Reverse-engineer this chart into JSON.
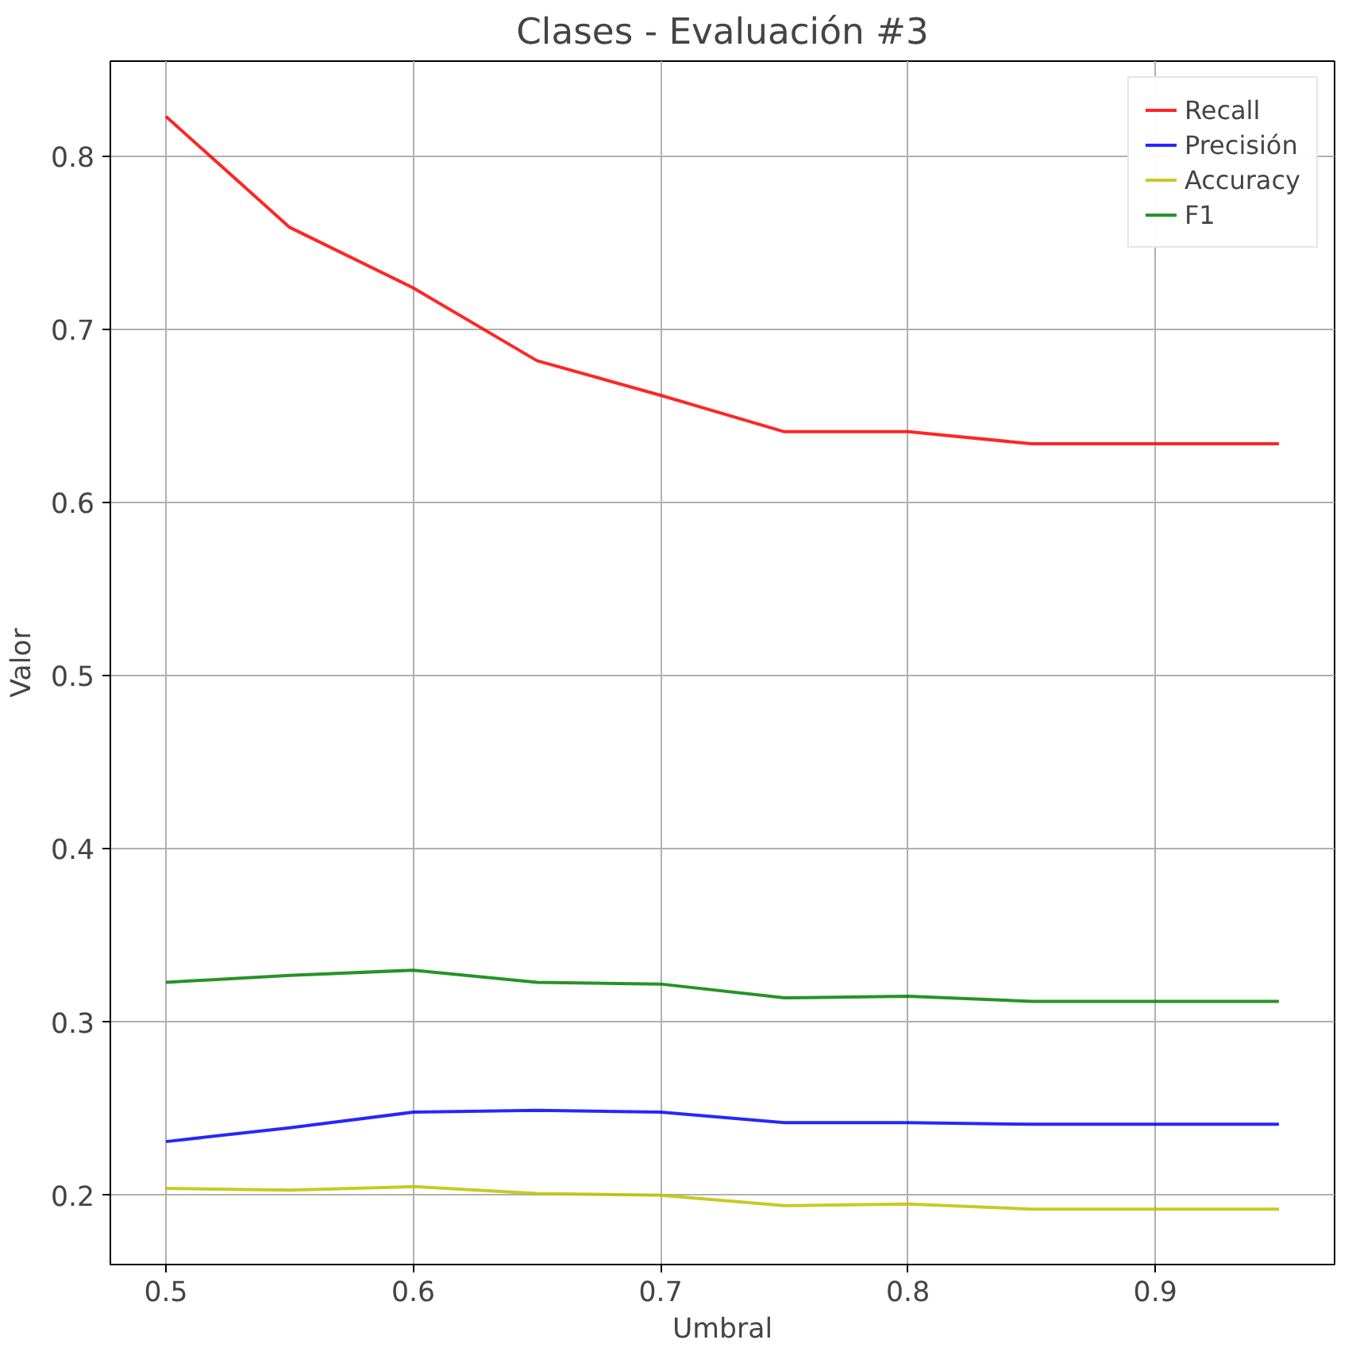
{
  "chart_data": {
    "type": "line",
    "title": "Clases - Evaluación #3",
    "xlabel": "Umbral",
    "ylabel": "Valor",
    "x": [
      0.5,
      0.55,
      0.6,
      0.65,
      0.7,
      0.75,
      0.8,
      0.85,
      0.9,
      0.95
    ],
    "series": [
      {
        "name": "Recall",
        "color": "#ff0000",
        "values": [
          0.823,
          0.759,
          0.724,
          0.682,
          0.662,
          0.641,
          0.641,
          0.634,
          0.634,
          0.634
        ]
      },
      {
        "name": "Precisión",
        "color": "#0000ff",
        "values": [
          0.231,
          0.239,
          0.248,
          0.249,
          0.248,
          0.242,
          0.242,
          0.241,
          0.241,
          0.241
        ]
      },
      {
        "name": "Accuracy",
        "color": "#bfbf00",
        "values": [
          0.204,
          0.203,
          0.205,
          0.201,
          0.2,
          0.194,
          0.195,
          0.192,
          0.192,
          0.192
        ]
      },
      {
        "name": "F1",
        "color": "#008000",
        "values": [
          0.323,
          0.327,
          0.33,
          0.323,
          0.322,
          0.314,
          0.315,
          0.312,
          0.312,
          0.312
        ]
      }
    ],
    "xlim": [
      0.4775,
      0.9725
    ],
    "ylim": [
      0.16,
      0.855
    ],
    "xticks": [
      0.5,
      0.6,
      0.7,
      0.8,
      0.9
    ],
    "yticks": [
      0.2,
      0.3,
      0.4,
      0.5,
      0.6,
      0.7,
      0.8
    ],
    "grid": true,
    "legend": "top right",
    "marker": "none",
    "line_style": "solid"
  }
}
